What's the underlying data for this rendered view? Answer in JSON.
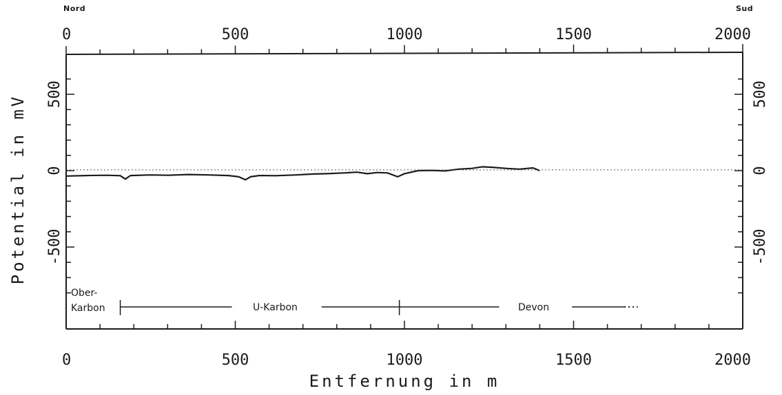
{
  "header": {
    "left_label": "Nord",
    "right_label": "Sud"
  },
  "chart_data": {
    "type": "line",
    "xlabel": "Entfernung in m",
    "ylabel": "Potential in mV",
    "xlim": [
      0,
      2000
    ],
    "ylim": [
      -820,
      600
    ],
    "x_ticks": [
      0,
      500,
      1000,
      1500,
      2000
    ],
    "y_ticks": [
      500,
      0,
      -500
    ],
    "axes": {
      "top": true,
      "right": true
    },
    "grid": false,
    "series": [
      {
        "style": "solid",
        "x": [
          0,
          60,
          120,
          160,
          175,
          190,
          250,
          300,
          360,
          420,
          480,
          510,
          530,
          545,
          570,
          620,
          680,
          730,
          770,
          820,
          860,
          890,
          920,
          950,
          980,
          1000,
          1040,
          1080,
          1120,
          1160,
          1200,
          1230,
          1260,
          1300,
          1340,
          1380,
          1400
        ],
        "y": [
          -35,
          -32,
          -30,
          -33,
          -55,
          -32,
          -28,
          -30,
          -25,
          -28,
          -32,
          -40,
          -60,
          -40,
          -32,
          -33,
          -28,
          -22,
          -20,
          -15,
          -10,
          -20,
          -12,
          -15,
          -40,
          -20,
          0,
          2,
          -2,
          10,
          15,
          25,
          22,
          15,
          10,
          18,
          0
        ]
      },
      {
        "style": "dotted",
        "x": [
          0,
          2000
        ],
        "y": [
          5,
          5
        ]
      }
    ],
    "annotations": {
      "formations": [
        {
          "lines": [
            "Ober-",
            "Karbon"
          ]
        },
        {
          "lines": [
            "U-Karbon"
          ]
        },
        {
          "lines": [
            "Devon"
          ]
        }
      ],
      "formation_segments": [
        {
          "x": [
            160,
            490
          ],
          "style": "solid"
        },
        {
          "x": [
            755,
            1280
          ],
          "style": "solid"
        },
        {
          "x": [
            1495,
            1650
          ],
          "style": "solid"
        },
        {
          "x": [
            1650,
            1690
          ],
          "style": "dotted"
        }
      ],
      "formation_boundaries": [
        160,
        985
      ]
    }
  }
}
